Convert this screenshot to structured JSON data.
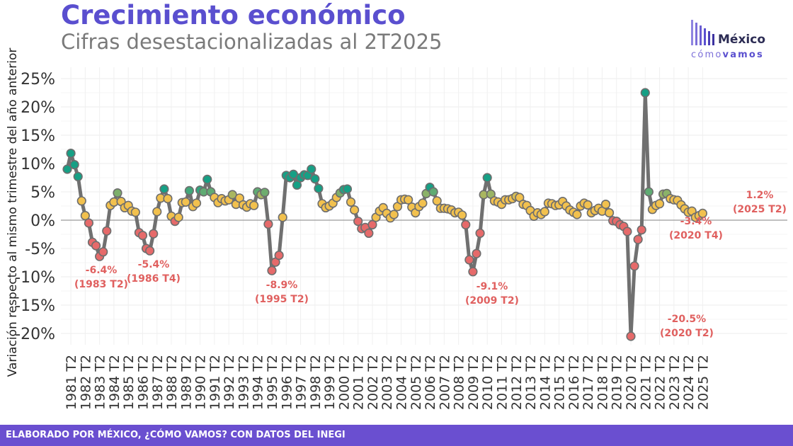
{
  "header": {
    "title": "Crecimiento económico",
    "subtitle": "Cifras desestacionalizadas al 2T2025"
  },
  "logo": {
    "main": "México",
    "sub_prefix": "cómo",
    "sub_suffix": "vamos"
  },
  "footer": {
    "text": "ELABORADO POR MÉXICO, ¿CÓMO VAMOS? CON DATOS DEL INEGI"
  },
  "colors": {
    "line": "#707070",
    "low": "#e66a6a",
    "mid": "#f2c14e",
    "high": "#16a085",
    "annotation": "#e0605f",
    "accent": "#5a4fcf"
  },
  "chart_data": {
    "type": "line",
    "ylabel": "Variación respecto al mismo trimestre del año anterior",
    "ylim": [
      -22,
      27
    ],
    "yticks": [
      -20,
      -15,
      -10,
      -5,
      0,
      5,
      10,
      15,
      20,
      25
    ],
    "ytick_labels": [
      "-20%",
      "-15%",
      "-10%",
      "-5%",
      "0%",
      "5%",
      "10%",
      "15%",
      "20%",
      "25%"
    ],
    "xtick_labels": [
      "1981 T2",
      "1982 T2",
      "1983 T2",
      "1984 T2",
      "1985 T2",
      "1986 T2",
      "1987 T2",
      "1988 T2",
      "1989 T2",
      "1990 T2",
      "1991 T2",
      "1992 T2",
      "1993 T2",
      "1994 T2",
      "1995 T2",
      "1996 T2",
      "1997 T2",
      "1998 T2",
      "1999 T2",
      "2000 T2",
      "2001 T2",
      "2002 T2",
      "2003 T2",
      "2004 T2",
      "2005 T2",
      "2006 T2",
      "2007 T2",
      "2008 T2",
      "2009 T2",
      "2010 T2",
      "2011 T2",
      "2012 T2",
      "2013 T2",
      "2014 T2",
      "2015 T2",
      "2016 T2",
      "2017 T2",
      "2018 T2",
      "2019 T2",
      "2020 T2",
      "2021 T2",
      "2022 T2",
      "2023 T2",
      "2024 T2",
      "2025 T2"
    ],
    "start": "1981 T1",
    "values": [
      9.0,
      11.8,
      9.8,
      7.7,
      3.4,
      0.8,
      -0.5,
      -3.9,
      -4.5,
      -6.4,
      -5.6,
      -1.9,
      2.6,
      3.2,
      4.8,
      3.3,
      2.2,
      2.6,
      1.6,
      1.4,
      -2.2,
      -2.7,
      -5.0,
      -5.4,
      -2.4,
      1.5,
      3.9,
      5.5,
      3.8,
      0.7,
      -0.2,
      0.5,
      3.1,
      3.2,
      5.2,
      2.4,
      3.0,
      5.3,
      5.0,
      7.2,
      5.0,
      4.0,
      3.1,
      3.8,
      3.4,
      3.6,
      4.5,
      2.8,
      3.9,
      2.7,
      2.3,
      2.9,
      2.6,
      5.0,
      4.5,
      4.9,
      -0.7,
      -8.9,
      -7.4,
      -6.2,
      0.5,
      7.9,
      7.5,
      8.1,
      6.2,
      7.5,
      8.0,
      7.9,
      9.0,
      7.3,
      5.6,
      2.9,
      2.2,
      2.5,
      3.0,
      4.0,
      4.8,
      5.4,
      5.5,
      3.2,
      1.8,
      -0.2,
      -1.5,
      -1.3,
      -2.3,
      -0.8,
      0.5,
      1.6,
      2.2,
      1.2,
      0.4,
      1.0,
      2.4,
      3.6,
      3.7,
      3.6,
      2.3,
      1.3,
      2.4,
      3.0,
      4.7,
      5.8,
      5.0,
      3.4,
      2.1,
      2.1,
      2.0,
      1.8,
      1.3,
      1.4,
      0.9,
      -0.8,
      -7.0,
      -9.1,
      -5.9,
      -2.3,
      4.5,
      7.5,
      4.6,
      3.4,
      3.2,
      2.8,
      3.6,
      3.6,
      3.8,
      4.2,
      4.0,
      2.8,
      2.6,
      1.7,
      0.7,
      1.3,
      1.0,
      1.5,
      3.0,
      2.9,
      2.6,
      2.7,
      3.3,
      2.5,
      1.8,
      1.4,
      1.0,
      2.5,
      3.0,
      2.7,
      1.3,
      1.7,
      2.1,
      1.6,
      2.8,
      1.3,
      -0.1,
      -0.2,
      -0.8,
      -1.1,
      -2.0,
      -20.5,
      -8.1,
      -3.4,
      -1.7,
      22.5,
      5.0,
      1.9,
      2.6,
      2.9,
      4.6,
      4.7,
      3.8,
      3.6,
      3.5,
      2.7,
      2.0,
      1.4,
      1.6,
      0.5,
      0.8,
      1.2
    ],
    "annotations": [
      {
        "value_label": "-6.4%",
        "period_label": "(1983 T2)"
      },
      {
        "value_label": "-5.4%",
        "period_label": "(1986 T4)"
      },
      {
        "value_label": "-8.9%",
        "period_label": "(1995 T2)"
      },
      {
        "value_label": "-9.1%",
        "period_label": "(2009 T2)"
      },
      {
        "value_label": "-20.5%",
        "period_label": "(2020 T2)"
      },
      {
        "value_label": "-3.4%",
        "period_label": "(2020 T4)"
      },
      {
        "value_label": "1.2%",
        "period_label": "(2025 T2)"
      }
    ]
  }
}
